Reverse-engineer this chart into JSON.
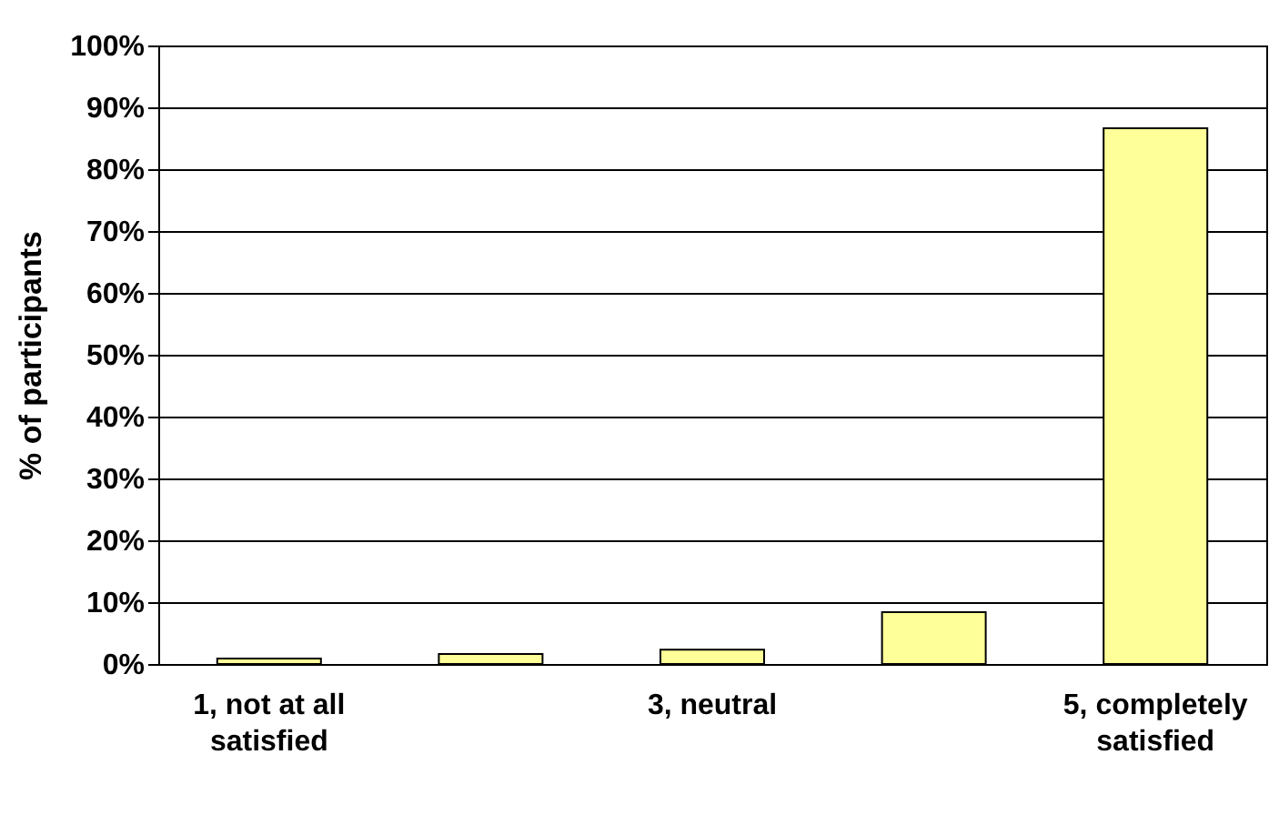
{
  "chart_data": {
    "type": "bar",
    "ylabel": "% of participants",
    "categories": [
      "1, not at all satisfied",
      null,
      "3, neutral",
      null,
      "5, completely satisfied"
    ],
    "values": [
      0.9,
      1.6,
      2.3,
      8.4,
      86.6
    ],
    "color": "#ffff99",
    "ylim": [
      0,
      100
    ],
    "yticks": [
      {
        "value": 0,
        "label": "0%"
      },
      {
        "value": 10,
        "label": "10%"
      },
      {
        "value": 20,
        "label": "20%"
      },
      {
        "value": 30,
        "label": "30%"
      },
      {
        "value": 40,
        "label": "40%"
      },
      {
        "value": 50,
        "label": "50%"
      },
      {
        "value": 60,
        "label": "60%"
      },
      {
        "value": 70,
        "label": "70%"
      },
      {
        "value": 80,
        "label": "80%"
      },
      {
        "value": 90,
        "label": "90%"
      },
      {
        "value": 100,
        "label": "100%"
      }
    ],
    "grid": "y"
  }
}
